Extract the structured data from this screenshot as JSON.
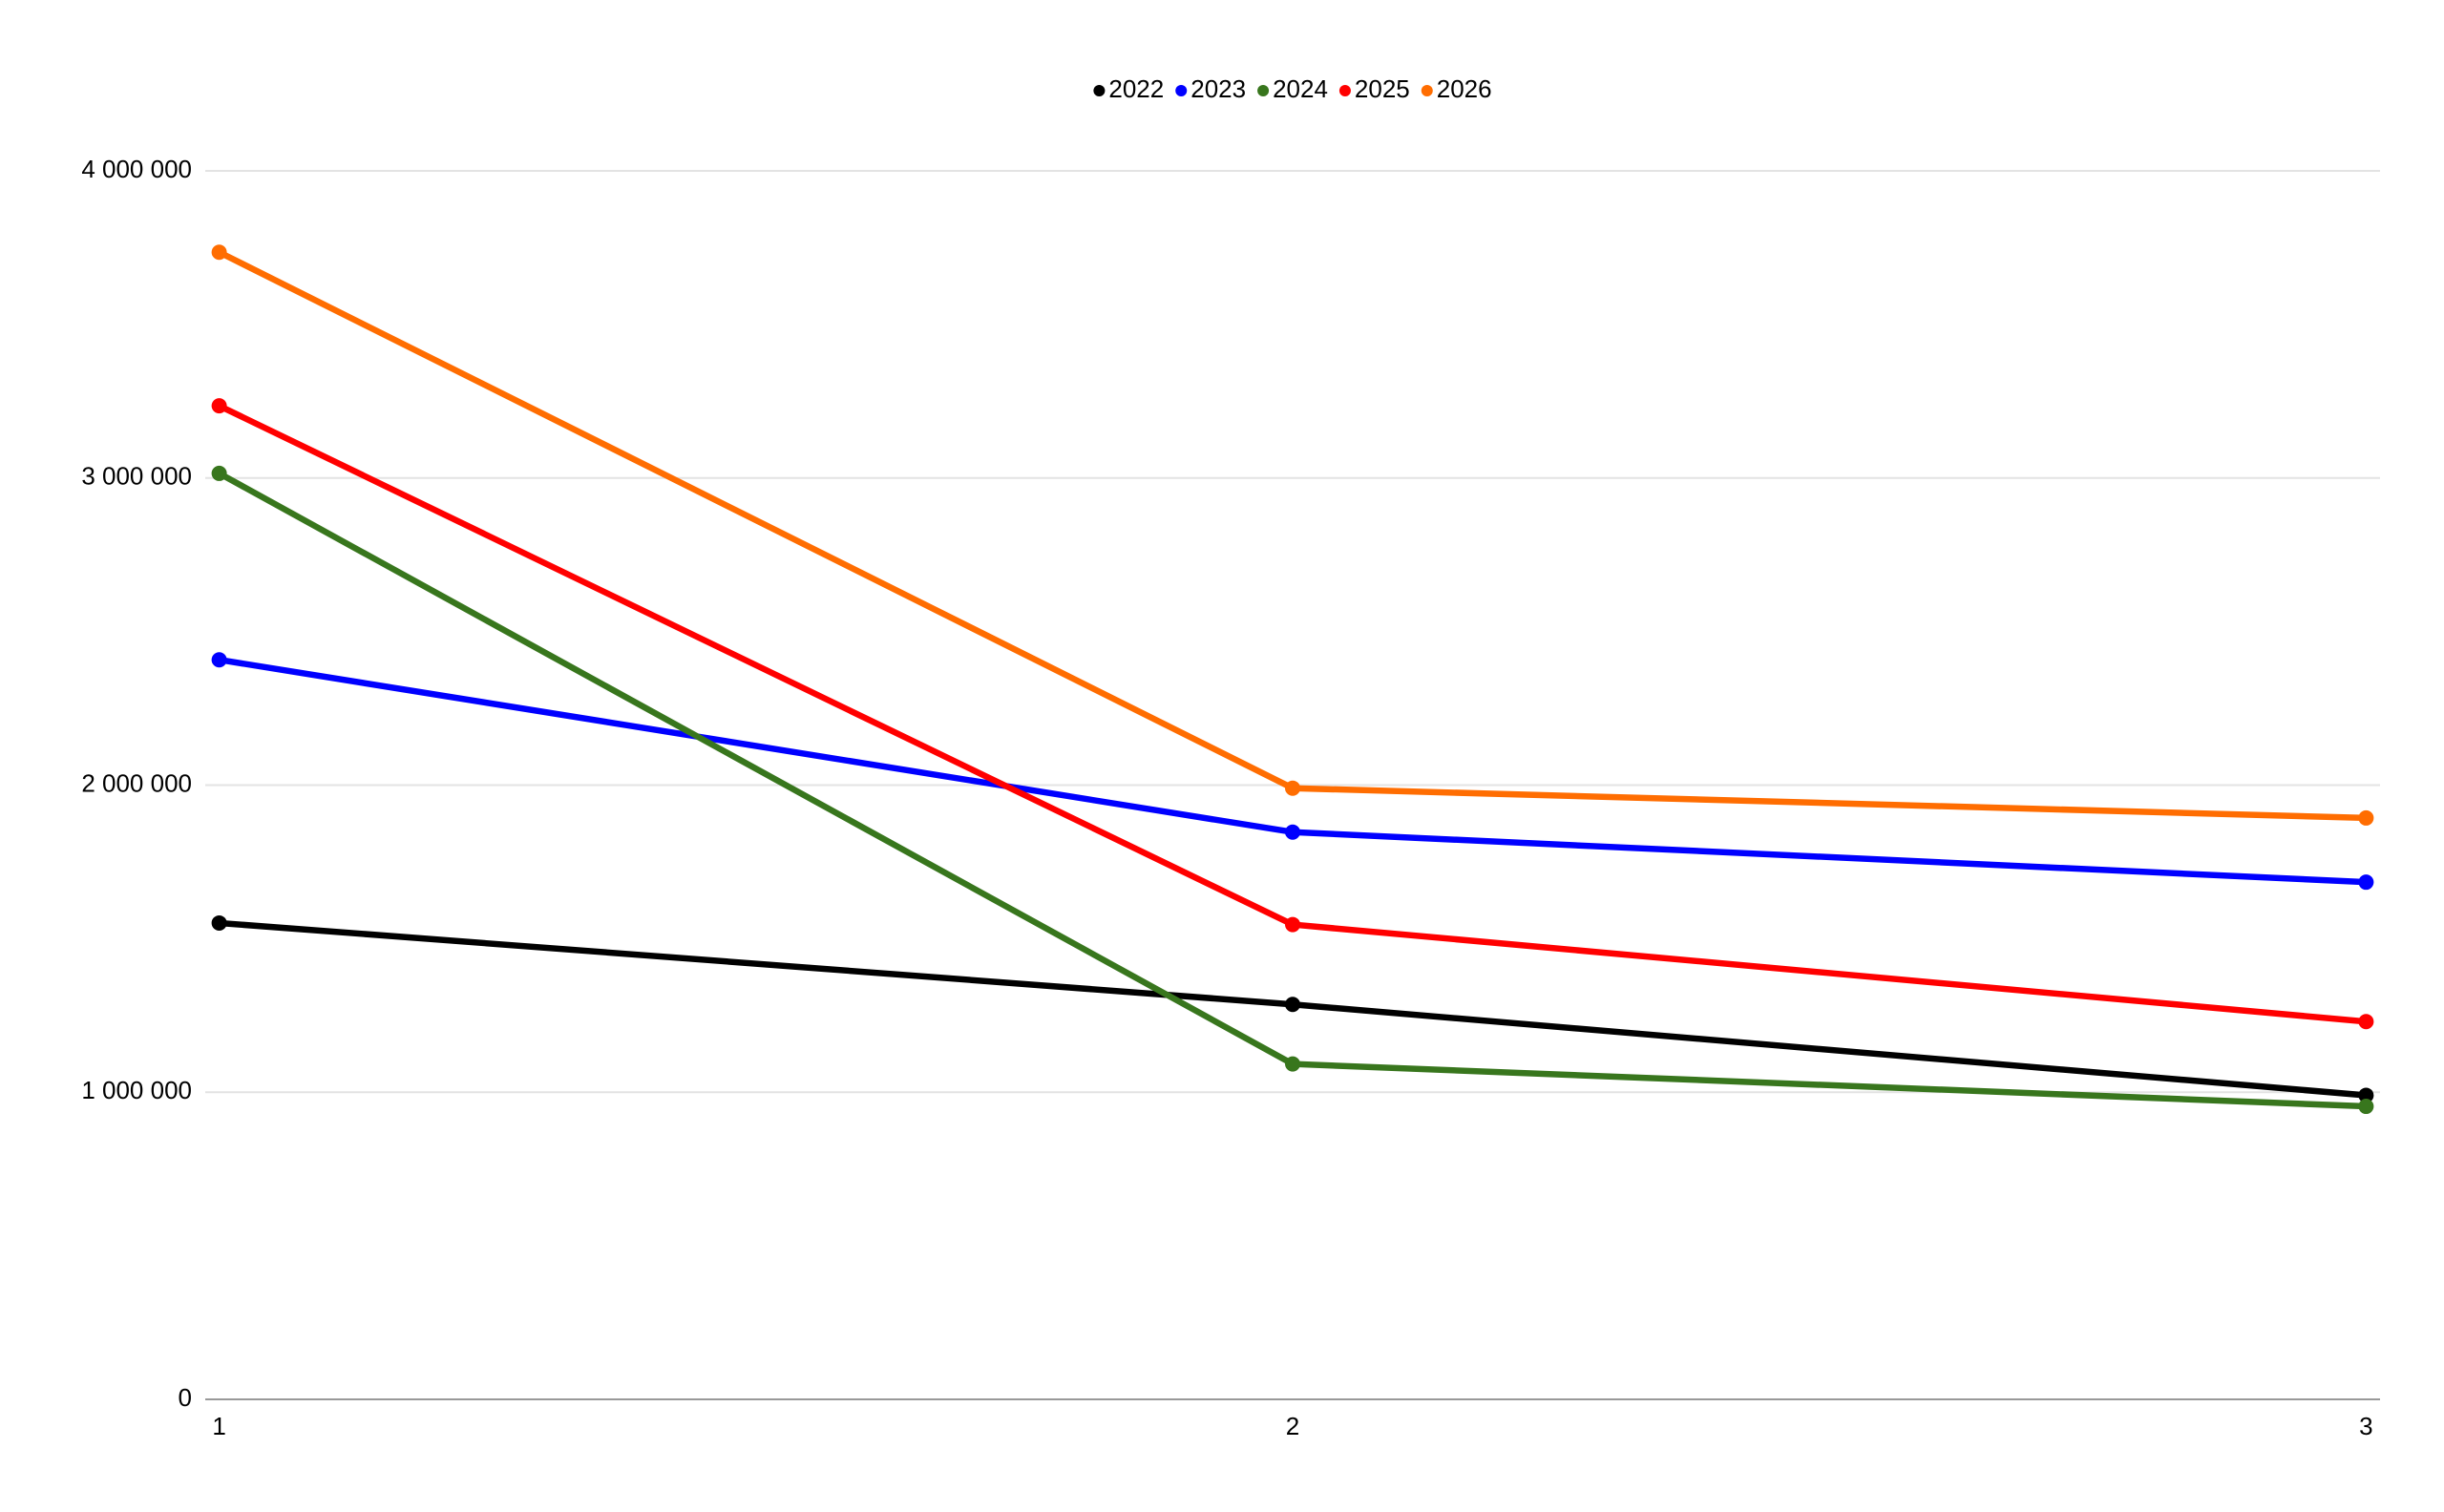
{
  "chart_data": {
    "type": "line",
    "x": [
      1,
      2,
      3
    ],
    "xlim": [
      0.987,
      3.013
    ],
    "xticks": [
      1,
      2,
      3
    ],
    "ylim": [
      0,
      4000000
    ],
    "yticks": [
      0,
      {
        "value": 1000000,
        "label": "1 000 000"
      },
      {
        "value": 2000000,
        "label": "2 000 000"
      },
      {
        "value": 3000000,
        "label": "3 000 000"
      },
      {
        "value": 4000000,
        "label": "4 000 000"
      }
    ],
    "grid": true,
    "legend": "top",
    "series": [
      {
        "name": "2022",
        "color": "#000000",
        "values": [
          1551000,
          1286000,
          990000
        ]
      },
      {
        "name": "2023",
        "color": "#0000ff",
        "values": [
          2408000,
          1847000,
          1684000
        ]
      },
      {
        "name": "2024",
        "color": "#38761d",
        "values": [
          3015000,
          1092000,
          954000
        ]
      },
      {
        "name": "2025",
        "color": "#ff0000",
        "values": [
          3235000,
          1546000,
          1230000
        ]
      },
      {
        "name": "2026",
        "color": "#ff6d01",
        "values": [
          3735000,
          1990000,
          1893000
        ]
      }
    ]
  }
}
